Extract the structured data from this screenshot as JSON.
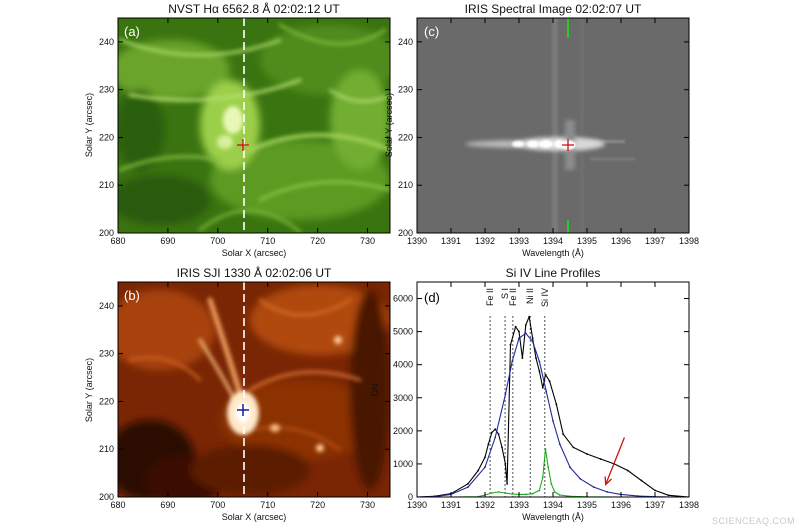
{
  "figure": {
    "watermark": "SCIENCEAQ.COM",
    "panels": [
      {
        "id": "a",
        "title": "NVST Hα 6562.8 Å  02:02:12 UT",
        "label": "(a)",
        "xlabel": "Solar X (arcsec)",
        "ylabel": "Solar Y (arcsec)",
        "xticks": [
          "680",
          "690",
          "700",
          "710",
          "720",
          "730"
        ],
        "yticks": [
          "200",
          "210",
          "220",
          "230",
          "240"
        ],
        "image_colors": [
          "#0e2a04",
          "#3f7a12",
          "#8fc23c",
          "#e8f8b8"
        ],
        "marker_color": "#d01010",
        "slit_color": "#ffffff"
      },
      {
        "id": "c",
        "title": "IRIS Spectral Image 02:02:07 UT",
        "label": "(c)",
        "xlabel": "Wavelength (Å)",
        "ylabel": "Solar Y (arcsec)",
        "xticks": [
          "1390",
          "1391",
          "1392",
          "1393",
          "1394",
          "1395",
          "1396",
          "1397",
          "1398"
        ],
        "yticks": [
          "200",
          "210",
          "220",
          "230",
          "240"
        ],
        "image_colors": [
          "#6a6a6a",
          "#ffffff"
        ],
        "marker_color": "#d01010",
        "slit_color": "#22cc22"
      },
      {
        "id": "b",
        "title": "IRIS SJI 1330 Å  02:02:06 UT",
        "label": "(b)",
        "xlabel": "Solar X (arcsec)",
        "ylabel": "Solar Y (arcsec)",
        "xticks": [
          "680",
          "690",
          "700",
          "710",
          "720",
          "730"
        ],
        "yticks": [
          "200",
          "210",
          "220",
          "230",
          "240"
        ],
        "image_colors": [
          "#1e0400",
          "#8a2c04",
          "#e26a18",
          "#fff0d0"
        ],
        "marker_color": "#1a1a9a",
        "slit_color": "#ffffff"
      }
    ]
  },
  "chart_data": {
    "type": "line",
    "title": "Si IV Line Profiles",
    "panel_label": "(d)",
    "xlabel": "Wavelength (Å)",
    "ylabel": "DN",
    "xlim": [
      1390,
      1398
    ],
    "ylim": [
      0,
      6500
    ],
    "xticks": [
      "1390",
      "1391",
      "1392",
      "1393",
      "1394",
      "1395",
      "1396",
      "1397",
      "1398"
    ],
    "yticks": [
      "0",
      "1000",
      "2000",
      "3000",
      "4000",
      "5000",
      "6000"
    ],
    "grid": false,
    "series": [
      {
        "color": "#000000",
        "x": [
          1390.0,
          1390.5,
          1391.0,
          1391.5,
          1391.8,
          1392.0,
          1392.1,
          1392.2,
          1392.3,
          1392.4,
          1392.5,
          1392.6,
          1392.65,
          1392.75,
          1392.9,
          1393.0,
          1393.1,
          1393.2,
          1393.3,
          1393.4,
          1393.5,
          1393.6,
          1393.7,
          1393.78,
          1393.9,
          1394.1,
          1394.3,
          1394.6,
          1395.0,
          1395.4,
          1395.8,
          1396.2,
          1396.6,
          1397.0,
          1397.4,
          1398.0
        ],
        "y": [
          0,
          20,
          100,
          400,
          800,
          1200,
          1600,
          1950,
          2050,
          1900,
          1500,
          1000,
          400,
          4600,
          5150,
          5000,
          4200,
          5200,
          5450,
          4800,
          4200,
          3800,
          3300,
          3700,
          3500,
          2800,
          1900,
          1500,
          1300,
          1150,
          1000,
          800,
          500,
          200,
          50,
          0
        ]
      },
      {
        "color": "#1e2a9a",
        "x": [
          1390.0,
          1390.5,
          1391.0,
          1391.5,
          1392.0,
          1392.3,
          1392.6,
          1392.8,
          1393.0,
          1393.2,
          1393.4,
          1393.6,
          1393.8,
          1394.0,
          1394.2,
          1394.5,
          1394.8,
          1395.2,
          1395.6,
          1396.0,
          1396.5,
          1397.0,
          1397.5,
          1398.0
        ],
        "y": [
          0,
          10,
          80,
          300,
          900,
          1800,
          3100,
          4100,
          4800,
          4950,
          4700,
          4100,
          3200,
          2300,
          1600,
          900,
          550,
          300,
          150,
          80,
          30,
          10,
          0,
          0
        ]
      },
      {
        "color": "#22aa22",
        "x": [
          1390.0,
          1391.0,
          1391.8,
          1392.0,
          1392.2,
          1392.4,
          1392.6,
          1392.8,
          1393.0,
          1393.2,
          1393.4,
          1393.6,
          1393.7,
          1393.78,
          1393.86,
          1393.95,
          1394.05,
          1394.2,
          1394.5,
          1395.0,
          1396.0,
          1397.0,
          1398.0
        ],
        "y": [
          0,
          0,
          10,
          60,
          120,
          150,
          120,
          90,
          80,
          80,
          100,
          200,
          600,
          1450,
          900,
          400,
          150,
          60,
          20,
          5,
          0,
          0,
          0
        ]
      }
    ],
    "dotted_lines": [
      {
        "label": "Fe II",
        "x": 1392.15
      },
      {
        "label": "S I",
        "x": 1392.59
      },
      {
        "label": "Fe II",
        "x": 1392.82
      },
      {
        "label": "Ni II",
        "x": 1393.33
      },
      {
        "label": "Si IV",
        "x": 1393.76
      }
    ],
    "arrow": {
      "color": "#d01010",
      "from": [
        1396.1,
        1800
      ],
      "to": [
        1395.55,
        380
      ]
    }
  }
}
